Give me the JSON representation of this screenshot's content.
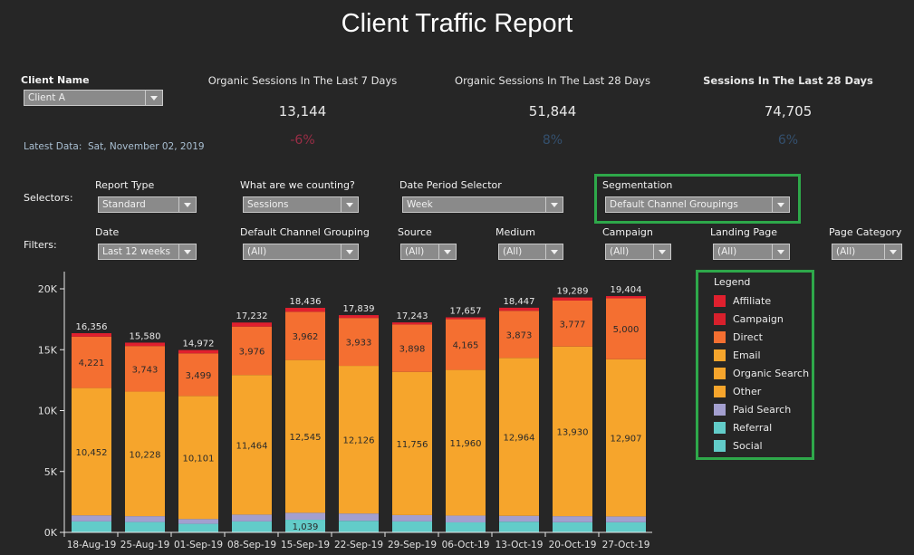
{
  "title": "Client Traffic Report",
  "client": {
    "label": "Client Name",
    "value": "Client A"
  },
  "latest": {
    "label": "Latest Data:",
    "value": "Sat, November 02, 2019"
  },
  "kpis": [
    {
      "title": "Organic Sessions In The Last 7 Days",
      "value": "13,144",
      "change": "-6%",
      "change_color": "#9b2d46"
    },
    {
      "title": "Organic Sessions In The Last 28 Days",
      "value": "51,844",
      "change": "8%",
      "change_color": "#34506e"
    },
    {
      "title": "Sessions In The Last 28 Days",
      "value": "74,705",
      "change": "6%",
      "change_color": "#34506e"
    }
  ],
  "selectors": {
    "row_label": "Selectors:",
    "items": [
      {
        "label": "Report Type",
        "value": "Standard"
      },
      {
        "label": "What are we counting?",
        "value": "Sessions"
      },
      {
        "label": "Date Period Selector",
        "value": "Week"
      },
      {
        "label": "Segmentation",
        "value": "Default Channel Groupings"
      }
    ]
  },
  "filters": {
    "row_label": "Filters:",
    "items": [
      {
        "label": "Date",
        "value": "Last 12 weeks"
      },
      {
        "label": "Default Channel Grouping",
        "value": "(All)"
      },
      {
        "label": "Source",
        "value": "(All)"
      },
      {
        "label": "Medium",
        "value": "(All)"
      },
      {
        "label": "Campaign",
        "value": "(All)"
      },
      {
        "label": "Landing Page",
        "value": "(All)"
      },
      {
        "label": "Page Category",
        "value": "(All)"
      }
    ]
  },
  "legend": {
    "title": "Legend",
    "items": [
      {
        "name": "Affiliate",
        "color": "#e0202e"
      },
      {
        "name": "Campaign",
        "color": "#d8202c"
      },
      {
        "name": "Direct",
        "color": "#f46f31"
      },
      {
        "name": "Email",
        "color": "#f6a52c"
      },
      {
        "name": "Organic Search",
        "color": "#f6a52c"
      },
      {
        "name": "Other",
        "color": "#f6a52c"
      },
      {
        "name": "Paid Search",
        "color": "#a39fcf"
      },
      {
        "name": "Referral",
        "color": "#62ccc9"
      },
      {
        "name": "Social",
        "color": "#62ccc9"
      }
    ]
  },
  "chart_data": {
    "type": "bar",
    "stacked": true,
    "title": "",
    "xlabel": "",
    "ylabel": "",
    "ylim": [
      0,
      21000
    ],
    "yticks": [
      0,
      5000,
      10000,
      15000,
      20000
    ],
    "ytick_labels": [
      "0K",
      "5K",
      "10K",
      "15K",
      "20K"
    ],
    "grid": false,
    "legend_position": "right",
    "categories": [
      "18-Aug-19",
      "25-Aug-19",
      "01-Sep-19",
      "08-Sep-19",
      "15-Sep-19",
      "22-Sep-19",
      "29-Sep-19",
      "06-Oct-19",
      "13-Oct-19",
      "20-Oct-19",
      "27-Oct-19"
    ],
    "totals": [
      16356,
      15580,
      14972,
      17232,
      18436,
      17839,
      17243,
      17657,
      18447,
      19289,
      19404
    ],
    "series": [
      {
        "name": "Referral/Social",
        "color": "#62ccc9",
        "values": [
          900,
          850,
          700,
          900,
          1039,
          950,
          900,
          820,
          880,
          830,
          830
        ],
        "labels": [
          null,
          null,
          null,
          null,
          "1,039",
          null,
          null,
          null,
          null,
          null,
          null
        ]
      },
      {
        "name": "Paid Search",
        "color": "#a39fcf",
        "values": [
          500,
          480,
          400,
          560,
          570,
          600,
          520,
          560,
          480,
          500,
          480
        ],
        "labels": [
          null,
          null,
          null,
          null,
          null,
          null,
          null,
          null,
          null,
          null,
          null
        ]
      },
      {
        "name": "Organic Search",
        "color": "#f6a52c",
        "values": [
          10452,
          10228,
          10101,
          11464,
          12545,
          12126,
          11756,
          11960,
          12964,
          13930,
          12907
        ],
        "labels": [
          "10,452",
          "10,228",
          "10,101",
          "11,464",
          "12,545",
          "12,126",
          "11,756",
          "11,960",
          "12,964",
          "13,930",
          "12,907"
        ]
      },
      {
        "name": "Direct",
        "color": "#f46f31",
        "values": [
          4221,
          3743,
          3499,
          3976,
          3962,
          3933,
          3898,
          4165,
          3873,
          3777,
          5000
        ],
        "labels": [
          "4,221",
          "3,743",
          "3,499",
          "3,976",
          "3,962",
          "3,933",
          "3,898",
          "4,165",
          "3,873",
          "3,777",
          "5,000"
        ]
      },
      {
        "name": "Affiliate/Campaign",
        "color": "#e0202e",
        "values": [
          283,
          279,
          272,
          332,
          320,
          230,
          169,
          152,
          250,
          252,
          187
        ],
        "labels": [
          null,
          null,
          null,
          null,
          null,
          null,
          null,
          null,
          null,
          null,
          null
        ]
      }
    ],
    "total_labels": [
      "16,356",
      "15,580",
      "14,972",
      "17,232",
      "18,436",
      "17,839",
      "17,243",
      "17,657",
      "18,447",
      "19,289",
      "19,404"
    ]
  }
}
